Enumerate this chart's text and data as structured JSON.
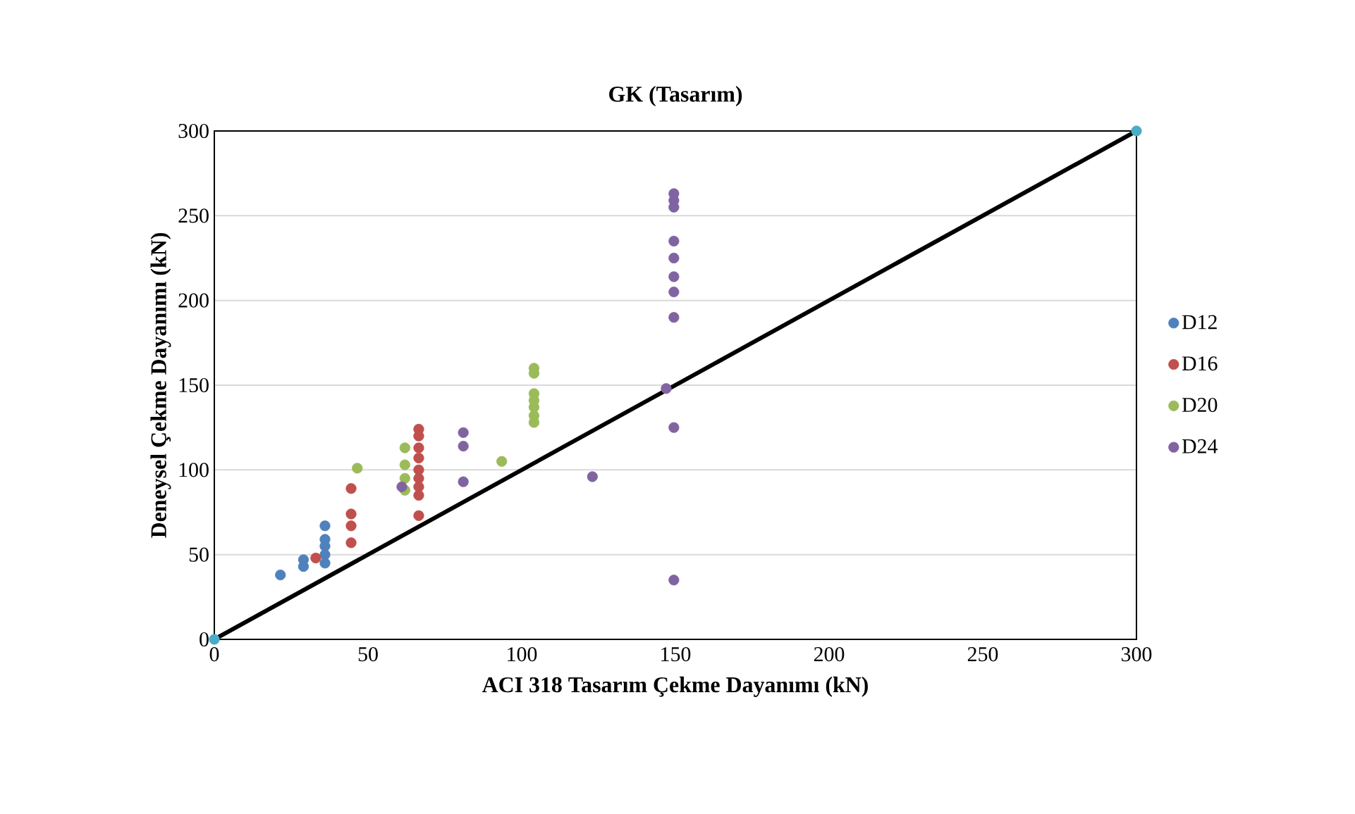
{
  "chart_data": {
    "type": "scatter",
    "title": "GK (Tasarım)",
    "xlabel": "ACI 318 Tasarım Çekme Dayanımı (kN)",
    "ylabel": "Deneysel Çekme Dayanımı (kN)",
    "xlim": [
      0,
      300
    ],
    "ylim": [
      0,
      300
    ],
    "xticks": [
      0,
      50,
      100,
      150,
      200,
      250,
      300
    ],
    "yticks": [
      0,
      50,
      100,
      150,
      200,
      250,
      300
    ],
    "grid": "y",
    "legend": "right",
    "marker": "circle",
    "series": [
      {
        "name": "D12",
        "color": "#4f81bd",
        "x": [
          21.5,
          29,
          29,
          36,
          36,
          36,
          36,
          36
        ],
        "values": [
          38,
          47,
          43,
          45,
          50,
          55,
          59,
          67
        ]
      },
      {
        "name": "D16",
        "color": "#c0504d",
        "x": [
          33,
          44.5,
          44.5,
          44.5,
          44.5,
          66.5,
          66.5,
          66.5,
          66.5,
          66.5,
          66.5,
          66.5,
          66.5,
          66.5
        ],
        "values": [
          48,
          89,
          74,
          67,
          57,
          124,
          120,
          113,
          107,
          100,
          95,
          90,
          85,
          73
        ]
      },
      {
        "name": "D20",
        "color": "#9bbb59",
        "x": [
          46.5,
          62,
          62,
          62,
          62,
          93.5,
          104,
          104,
          104,
          104,
          104,
          104,
          104
        ],
        "values": [
          101,
          113,
          103,
          95,
          88,
          105,
          160,
          157,
          145,
          141,
          137,
          132,
          128
        ]
      },
      {
        "name": "D24",
        "color": "#8064a2",
        "x": [
          61,
          81,
          81,
          81,
          123,
          149.5,
          149.5,
          149.5,
          149.5,
          149.5,
          149.5,
          149.5,
          149.5,
          147,
          149.5,
          149.5
        ],
        "values": [
          90,
          122,
          114,
          93,
          96,
          263,
          259,
          255,
          235,
          225,
          214,
          205,
          190,
          148,
          125,
          35
        ]
      },
      {
        "type": "line",
        "color": "#000000",
        "marker": "none",
        "x": [
          0,
          300
        ],
        "values": [
          0,
          300
        ]
      },
      {
        "color": "#4bacc6",
        "x": [
          0,
          300
        ],
        "values": [
          0,
          300
        ]
      }
    ]
  }
}
